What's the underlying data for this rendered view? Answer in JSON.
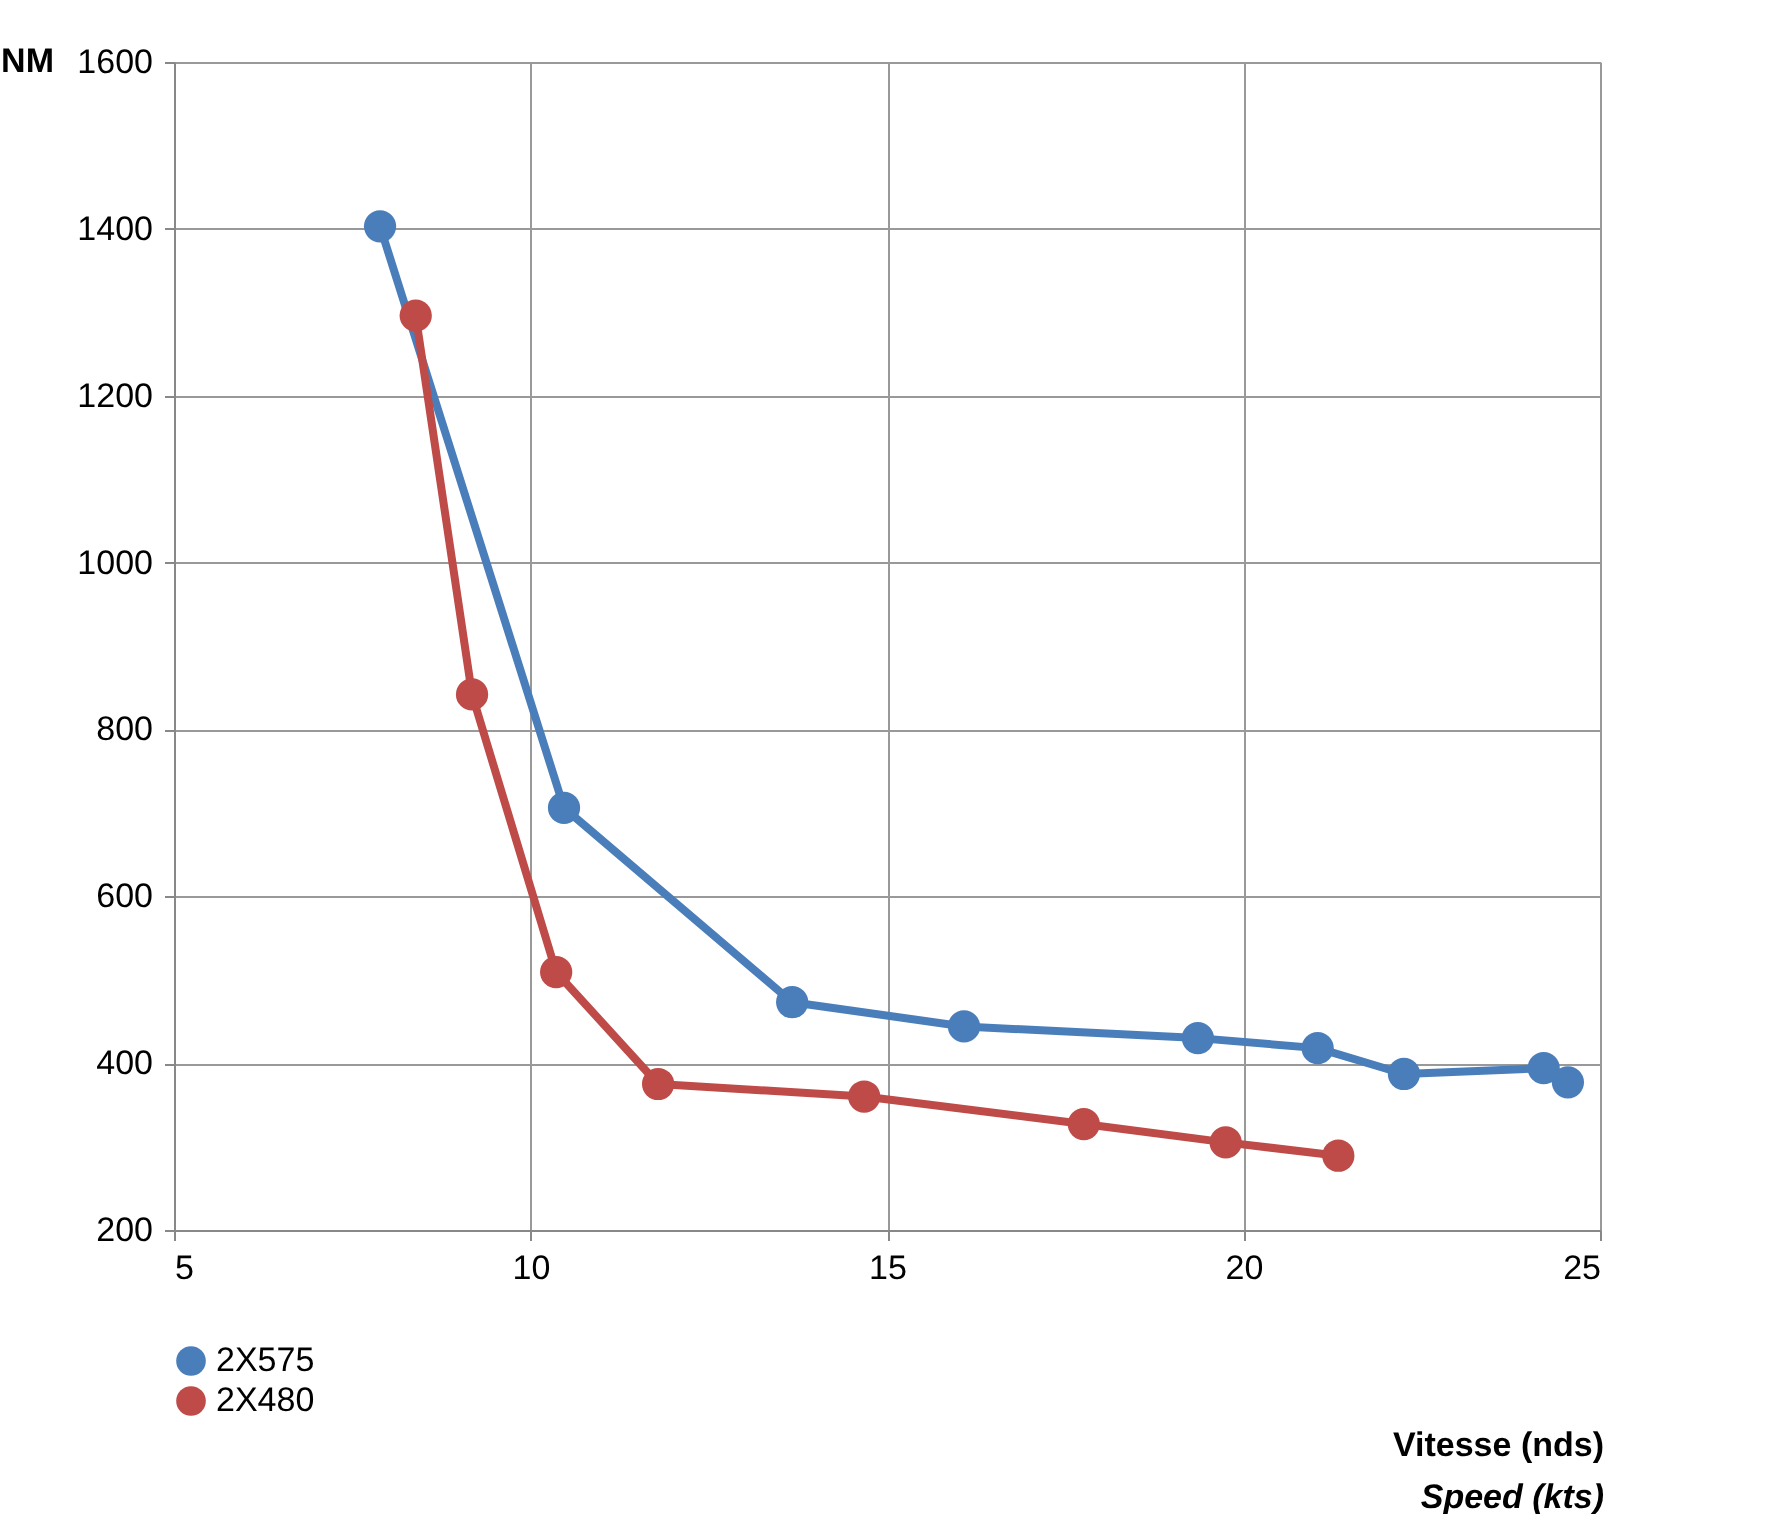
{
  "chart_data": {
    "type": "line",
    "ylabel": "NM",
    "xlabel": "Vitesse (nds)\nSpeed (kts)",
    "xlim": [
      5,
      25
    ],
    "xticks": [
      5,
      10,
      15,
      20,
      25
    ],
    "ylim": [
      200,
      1600
    ],
    "yticks": [
      200,
      400,
      600,
      800,
      1000,
      1200,
      1400,
      1600
    ],
    "grid": true,
    "legend": "bottom left",
    "marker": "circle",
    "line_style": "solid",
    "series": [
      {
        "name": "2X575",
        "color": "#4a7ebb",
        "x": [
          7.89,
          10.47,
          13.67,
          16.08,
          19.36,
          21.04,
          22.25,
          24.21,
          24.55
        ],
        "values": [
          1403,
          706,
          473,
          444,
          430,
          418,
          387,
          394,
          377
        ]
      },
      {
        "name": "2X480",
        "color": "#be4b48",
        "x": [
          8.39,
          9.18,
          10.36,
          11.79,
          14.68,
          17.76,
          19.75,
          21.33
        ],
        "values": [
          1296,
          842,
          509,
          375,
          360,
          327,
          305,
          289
        ]
      }
    ]
  }
}
